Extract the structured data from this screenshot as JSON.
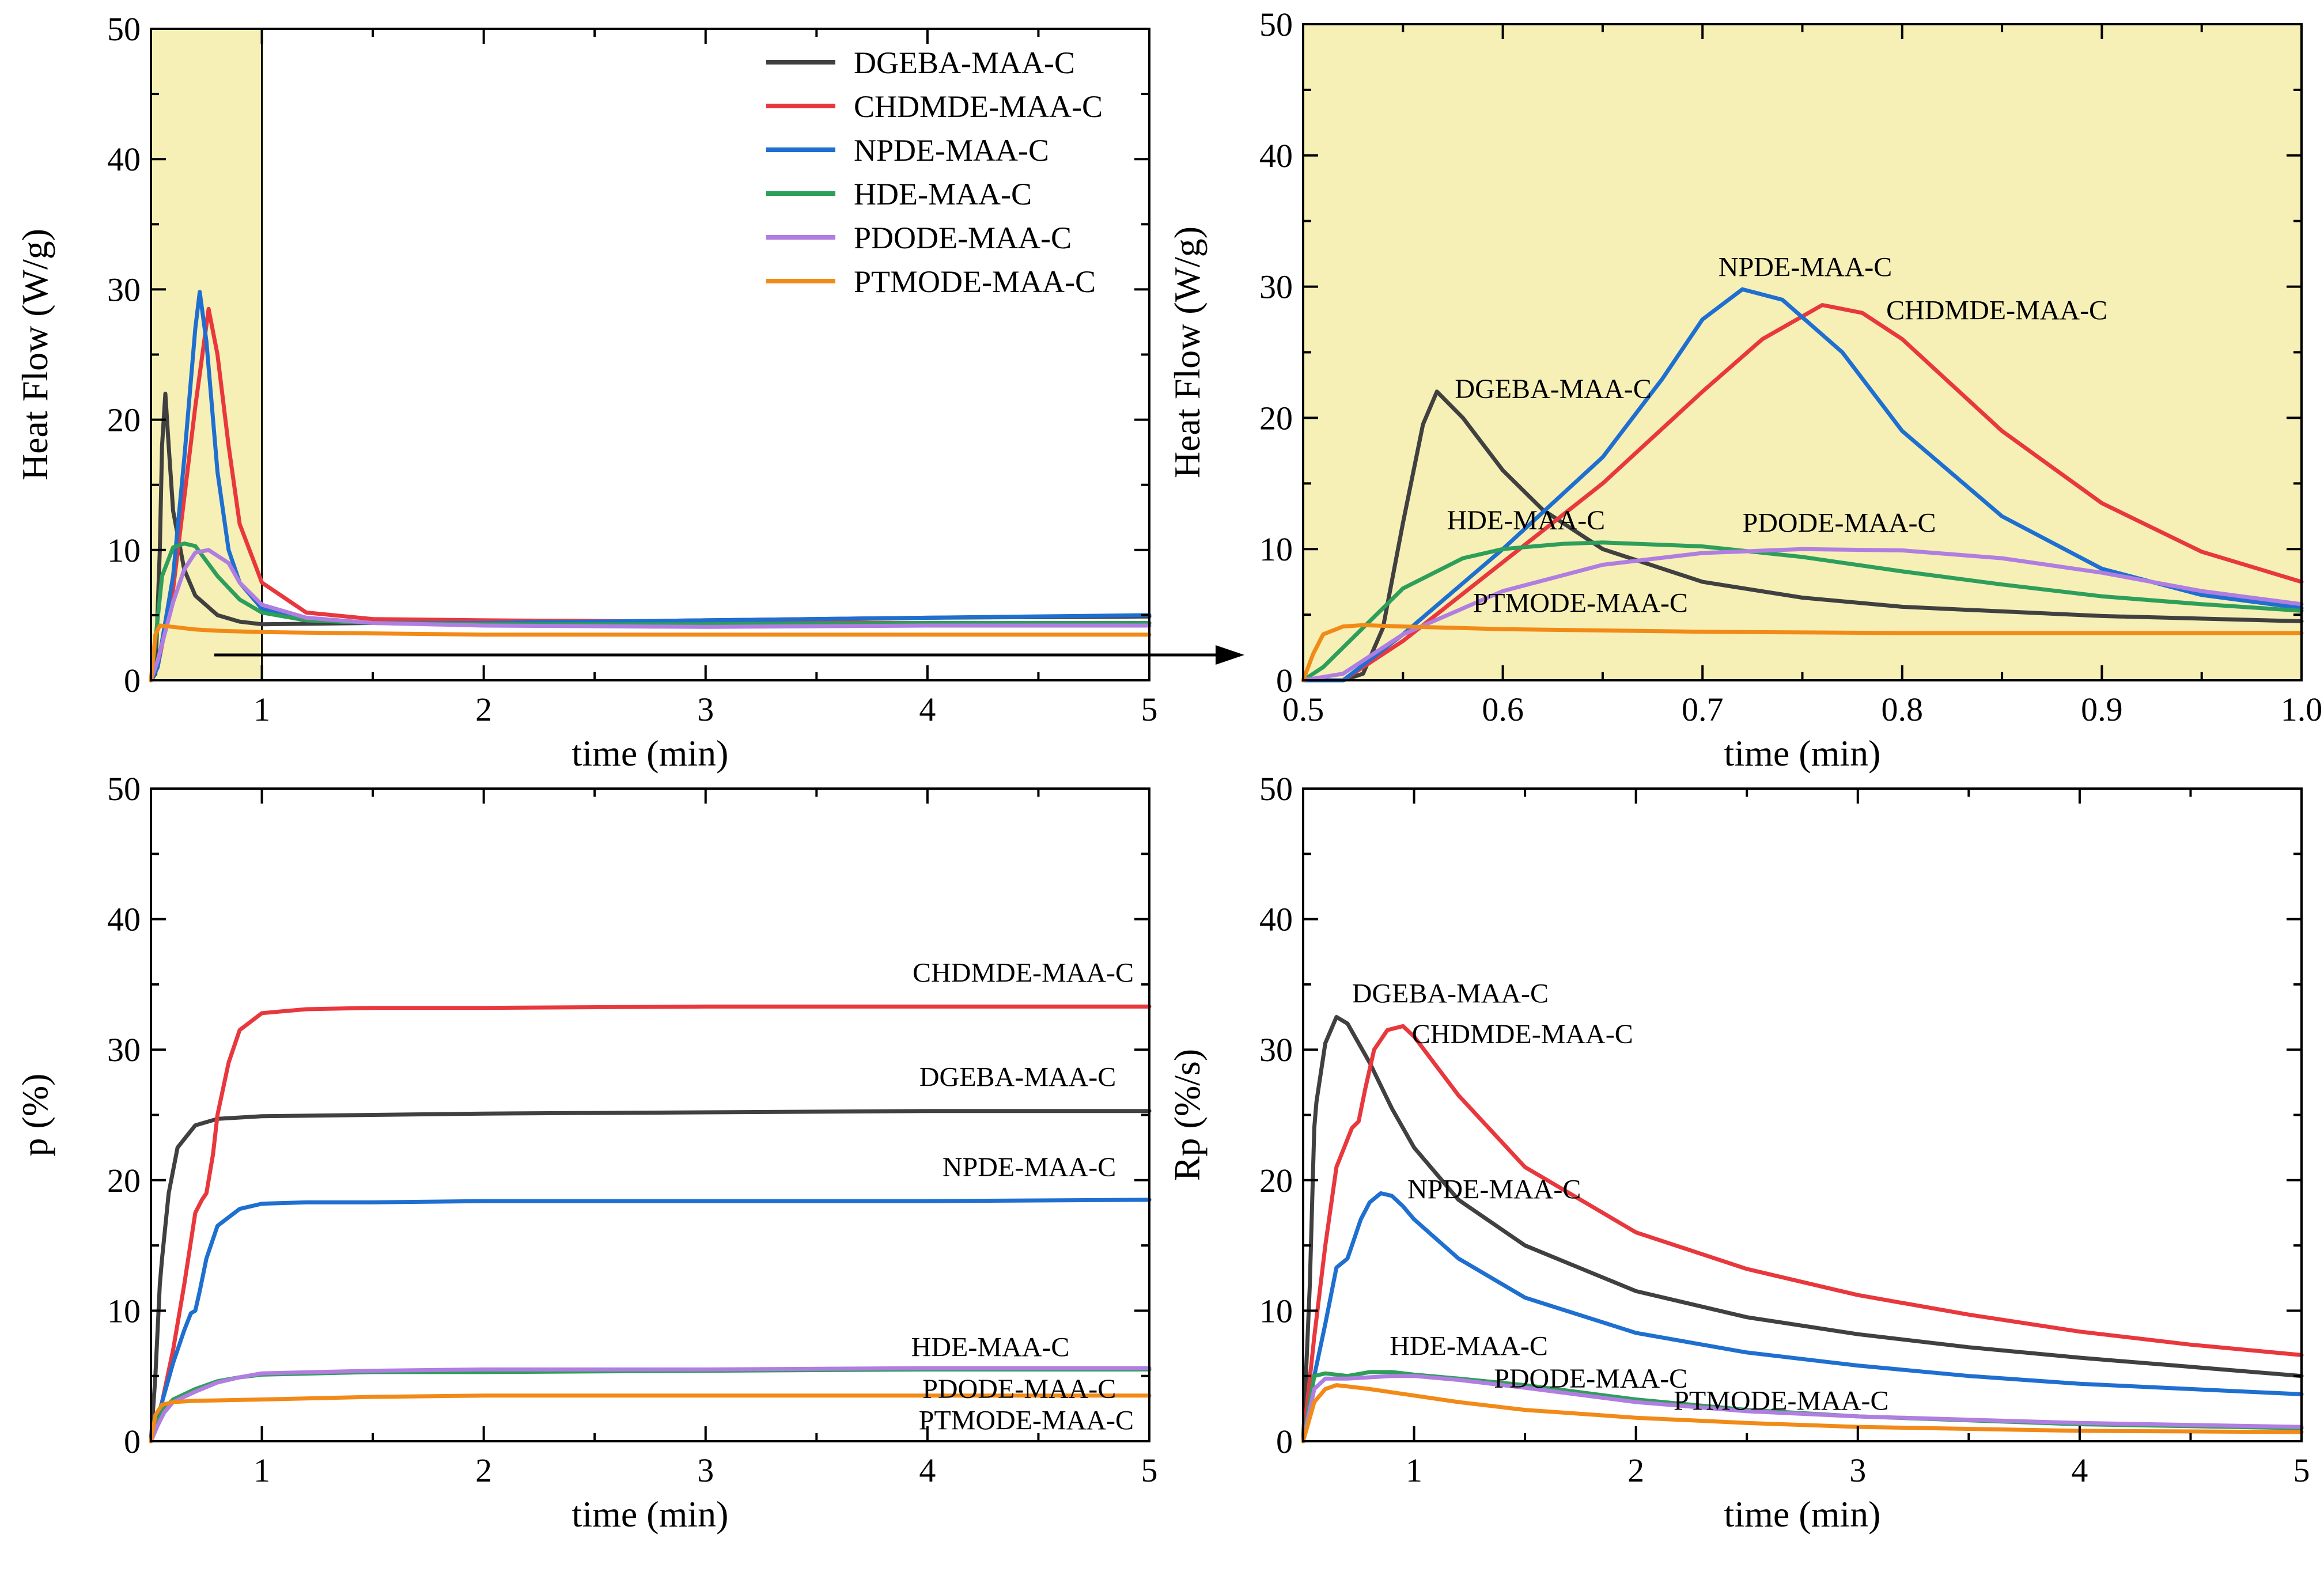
{
  "colors": {
    "DGEBA-MAA-C": "#404040",
    "CHDMDE-MAA-C": "#e8383d",
    "NPDE-MAA-C": "#1f6fd1",
    "HDE-MAA-C": "#2e9e5b",
    "PDODE-MAA-C": "#b07ee0",
    "PTMODE-MAA-C": "#f28a17",
    "highlight": "#f6f0b6"
  },
  "legend": [
    "DGEBA-MAA-C",
    "CHDMDE-MAA-C",
    "NPDE-MAA-C",
    "HDE-MAA-C",
    "PDODE-MAA-C",
    "PTMODE-MAA-C"
  ],
  "chart_data": [
    {
      "id": "heatflow-full",
      "type": "line",
      "xlabel": "time (min)",
      "ylabel": "Heat Flow (W/g)",
      "xlim": [
        0.5,
        5
      ],
      "ylim": [
        0,
        50
      ],
      "xticks": [
        1,
        2,
        3,
        4,
        5
      ],
      "yticks": [
        0,
        10,
        20,
        30,
        40,
        50
      ],
      "highlight_x": [
        0.5,
        1
      ],
      "legend": "top-right",
      "series": [
        {
          "name": "DGEBA-MAA-C",
          "x": [
            0.5,
            0.52,
            0.54,
            0.55,
            0.565,
            0.58,
            0.6,
            0.65,
            0.7,
            0.8,
            0.9,
            1,
            1.5,
            2,
            3,
            4,
            5
          ],
          "y": [
            0,
            0.5,
            10,
            18,
            22,
            18,
            13,
            8.5,
            6.5,
            5,
            4.5,
            4.3,
            4.4,
            4.4,
            4.6,
            4.8,
            4.9
          ]
        },
        {
          "name": "CHDMDE-MAA-C",
          "x": [
            0.5,
            0.53,
            0.6,
            0.65,
            0.7,
            0.76,
            0.8,
            0.85,
            0.9,
            1,
            1.2,
            1.5,
            2,
            3,
            4,
            5
          ],
          "y": [
            0,
            1,
            7,
            14,
            21,
            28.5,
            25,
            18,
            12,
            7.5,
            5.2,
            4.7,
            4.6,
            4.5,
            4.4,
            4.4
          ]
        },
        {
          "name": "NPDE-MAA-C",
          "x": [
            0.5,
            0.53,
            0.6,
            0.65,
            0.7,
            0.72,
            0.75,
            0.8,
            0.85,
            0.9,
            1,
            1.2,
            1.5,
            2,
            3,
            4,
            5
          ],
          "y": [
            0,
            1,
            8,
            17,
            27,
            29.8,
            26,
            16,
            10,
            7.5,
            5.5,
            4.6,
            4.4,
            4.4,
            4.6,
            4.8,
            5
          ]
        },
        {
          "name": "HDE-MAA-C",
          "x": [
            0.5,
            0.52,
            0.55,
            0.6,
            0.65,
            0.7,
            0.8,
            0.9,
            1,
            1.2,
            1.5,
            2,
            3,
            4,
            5
          ],
          "y": [
            0,
            3,
            8,
            10.2,
            10.5,
            10.3,
            8,
            6.2,
            5.2,
            4.6,
            4.4,
            4.3,
            4.3,
            4.4,
            4.4
          ]
        },
        {
          "name": "PDODE-MAA-C",
          "x": [
            0.5,
            0.53,
            0.6,
            0.65,
            0.7,
            0.76,
            0.85,
            0.9,
            1,
            1.2,
            1.5,
            2,
            3,
            4,
            5
          ],
          "y": [
            0,
            1.5,
            6,
            8.5,
            9.8,
            10,
            9,
            7.5,
            5.8,
            4.8,
            4.4,
            4.2,
            4.1,
            4.2,
            4.2
          ]
        },
        {
          "name": "PTMODE-MAA-C",
          "x": [
            0.5,
            0.52,
            0.54,
            0.6,
            0.7,
            0.8,
            1,
            1.5,
            2,
            3,
            4,
            5
          ],
          "y": [
            0,
            3.5,
            4.2,
            4.1,
            3.9,
            3.8,
            3.7,
            3.6,
            3.5,
            3.5,
            3.5,
            3.5
          ]
        }
      ]
    },
    {
      "id": "heatflow-zoom",
      "type": "line",
      "xlabel": "time (min)",
      "ylabel": "Heat Flow (W/g)",
      "xlim": [
        0.5,
        1.0
      ],
      "ylim": [
        0,
        50
      ],
      "xticks": [
        0.5,
        0.6,
        0.7,
        0.8,
        0.9,
        1.0
      ],
      "xtick_labels": [
        "0.5",
        "0.6",
        "0.7",
        "0.8",
        "0.9",
        "1.0"
      ],
      "yticks": [
        0,
        10,
        20,
        30,
        40,
        50
      ],
      "highlight_x": [
        0.5,
        1.0
      ],
      "series": [
        {
          "name": "DGEBA-MAA-C",
          "x": [
            0.5,
            0.52,
            0.53,
            0.54,
            0.55,
            0.56,
            0.567,
            0.58,
            0.6,
            0.62,
            0.65,
            0.7,
            0.75,
            0.8,
            0.9,
            1.0
          ],
          "y": [
            0,
            0,
            0.5,
            4,
            12,
            19.5,
            22,
            20,
            16,
            13,
            10,
            7.5,
            6.3,
            5.6,
            4.9,
            4.5
          ]
        },
        {
          "name": "CHDMDE-MAA-C",
          "x": [
            0.5,
            0.52,
            0.55,
            0.6,
            0.65,
            0.7,
            0.73,
            0.76,
            0.78,
            0.8,
            0.85,
            0.9,
            0.95,
            1.0
          ],
          "y": [
            0,
            0,
            3,
            9,
            15,
            22,
            26,
            28.6,
            28,
            26,
            19,
            13.5,
            9.8,
            7.5
          ]
        },
        {
          "name": "NPDE-MAA-C",
          "x": [
            0.5,
            0.52,
            0.55,
            0.6,
            0.65,
            0.68,
            0.7,
            0.72,
            0.74,
            0.77,
            0.8,
            0.85,
            0.9,
            0.95,
            1.0
          ],
          "y": [
            0,
            0,
            3.5,
            10,
            17,
            23,
            27.5,
            29.8,
            29,
            25,
            19,
            12.5,
            8.5,
            6.5,
            5.5
          ]
        },
        {
          "name": "HDE-MAA-C",
          "x": [
            0.5,
            0.51,
            0.53,
            0.55,
            0.58,
            0.6,
            0.63,
            0.65,
            0.7,
            0.75,
            0.8,
            0.85,
            0.9,
            0.95,
            1.0
          ],
          "y": [
            0,
            1,
            4,
            7,
            9.3,
            10,
            10.4,
            10.5,
            10.2,
            9.4,
            8.3,
            7.3,
            6.4,
            5.8,
            5.3
          ]
        },
        {
          "name": "PDODE-MAA-C",
          "x": [
            0.5,
            0.52,
            0.55,
            0.6,
            0.65,
            0.7,
            0.75,
            0.8,
            0.85,
            0.9,
            0.95,
            1.0
          ],
          "y": [
            0,
            0.5,
            3.5,
            6.8,
            8.8,
            9.7,
            10,
            9.9,
            9.3,
            8.2,
            6.8,
            5.8
          ]
        },
        {
          "name": "PTMODE-MAA-C",
          "x": [
            0.5,
            0.505,
            0.51,
            0.52,
            0.53,
            0.55,
            0.6,
            0.7,
            0.8,
            0.9,
            1.0
          ],
          "y": [
            0,
            2,
            3.5,
            4.1,
            4.2,
            4.1,
            3.9,
            3.7,
            3.6,
            3.6,
            3.6
          ]
        }
      ],
      "annotations": [
        {
          "text": "DGEBA-MAA-C",
          "x": 0.576,
          "y": 21.5
        },
        {
          "text": "NPDE-MAA-C",
          "x": 0.708,
          "y": 30.8
        },
        {
          "text": "CHDMDE-MAA-C",
          "x": 0.792,
          "y": 27.5
        },
        {
          "text": "HDE-MAA-C",
          "x": 0.572,
          "y": 11.5
        },
        {
          "text": "PDODE-MAA-C",
          "x": 0.72,
          "y": 11.3
        },
        {
          "text": "PTMODE-MAA-C",
          "x": 0.585,
          "y": 5.2
        }
      ]
    },
    {
      "id": "conversion",
      "type": "line",
      "xlabel": "time (min)",
      "ylabel": "p (%)",
      "xlim": [
        0.5,
        5
      ],
      "ylim": [
        0,
        50
      ],
      "xticks": [
        1,
        2,
        3,
        4,
        5
      ],
      "yticks": [
        0,
        10,
        20,
        30,
        40,
        50
      ],
      "series": [
        {
          "name": "DGEBA-MAA-C",
          "x": [
            0.5,
            0.52,
            0.54,
            0.55,
            0.58,
            0.62,
            0.7,
            0.8,
            1,
            1.5,
            2,
            3,
            4,
            5
          ],
          "y": [
            0,
            5,
            12,
            14,
            19,
            22.5,
            24.2,
            24.7,
            24.9,
            25,
            25.1,
            25.2,
            25.3,
            25.3
          ]
        },
        {
          "name": "CHDMDE-MAA-C",
          "x": [
            0.5,
            0.55,
            0.6,
            0.65,
            0.7,
            0.73,
            0.75,
            0.78,
            0.8,
            0.85,
            0.9,
            1,
            1.2,
            1.5,
            2,
            3,
            4,
            5
          ],
          "y": [
            0,
            3,
            7,
            12,
            17.5,
            18.5,
            19,
            22,
            25,
            29,
            31.5,
            32.8,
            33.1,
            33.2,
            33.2,
            33.3,
            33.3,
            33.3
          ]
        },
        {
          "name": "NPDE-MAA-C",
          "x": [
            0.5,
            0.55,
            0.6,
            0.65,
            0.68,
            0.7,
            0.72,
            0.75,
            0.8,
            0.9,
            1,
            1.2,
            1.5,
            2,
            3,
            4,
            5
          ],
          "y": [
            0,
            3,
            6,
            8.5,
            9.8,
            10,
            11.5,
            14,
            16.5,
            17.8,
            18.2,
            18.3,
            18.3,
            18.4,
            18.4,
            18.4,
            18.5
          ]
        },
        {
          "name": "HDE-MAA-C",
          "x": [
            0.5,
            0.53,
            0.56,
            0.6,
            0.7,
            0.8,
            0.9,
            1,
            1.5,
            2,
            3,
            4,
            5
          ],
          "y": [
            0,
            1.5,
            2.5,
            3.2,
            4,
            4.6,
            4.9,
            5.1,
            5.3,
            5.3,
            5.4,
            5.5,
            5.5
          ]
        },
        {
          "name": "PDODE-MAA-C",
          "x": [
            0.5,
            0.53,
            0.56,
            0.6,
            0.7,
            0.8,
            0.9,
            1,
            1.5,
            2,
            3,
            4,
            5
          ],
          "y": [
            0,
            1.2,
            2.2,
            3,
            3.8,
            4.5,
            4.9,
            5.2,
            5.4,
            5.5,
            5.5,
            5.6,
            5.6
          ]
        },
        {
          "name": "PTMODE-MAA-C",
          "x": [
            0.5,
            0.52,
            0.55,
            0.6,
            0.7,
            1,
            1.5,
            2,
            3,
            4,
            5
          ],
          "y": [
            0,
            2,
            2.8,
            3,
            3.1,
            3.2,
            3.4,
            3.5,
            3.5,
            3.5,
            3.5
          ]
        }
      ],
      "annotations": [
        {
          "text": "CHDMDE-MAA-C",
          "x": 4.93,
          "y": 35.2,
          "anchor": "end"
        },
        {
          "text": "DGEBA-MAA-C",
          "x": 4.85,
          "y": 27.2,
          "anchor": "end"
        },
        {
          "text": "NPDE-MAA-C",
          "x": 4.85,
          "y": 20.3,
          "anchor": "end"
        },
        {
          "text": "HDE-MAA-C",
          "x": 4.64,
          "y": 6.5,
          "anchor": "end"
        },
        {
          "text": "PDODE-MAA-C",
          "x": 4.85,
          "y": 3.3,
          "anchor": "end"
        },
        {
          "text": "PTMODE-MAA-C",
          "x": 4.93,
          "y": 0.9,
          "anchor": "end"
        }
      ]
    },
    {
      "id": "rate",
      "type": "line",
      "xlabel": "time (min)",
      "ylabel": "Rp (%/s)",
      "xlim": [
        0.5,
        5
      ],
      "ylim": [
        0,
        50
      ],
      "xticks": [
        1,
        2,
        3,
        4,
        5
      ],
      "yticks": [
        0,
        10,
        20,
        30,
        40,
        50
      ],
      "series": [
        {
          "name": "DGEBA-MAA-C",
          "x": [
            0.5,
            0.53,
            0.55,
            0.56,
            0.6,
            0.65,
            0.7,
            0.8,
            0.9,
            1,
            1.2,
            1.5,
            2,
            2.5,
            3,
            3.5,
            4,
            4.5,
            5
          ],
          "y": [
            0,
            12,
            24,
            26,
            30.5,
            32.5,
            32,
            29,
            25.5,
            22.5,
            18.5,
            15,
            11.5,
            9.5,
            8.2,
            7.2,
            6.4,
            5.7,
            5
          ]
        },
        {
          "name": "CHDMDE-MAA-C",
          "x": [
            0.5,
            0.55,
            0.6,
            0.65,
            0.72,
            0.75,
            0.78,
            0.82,
            0.88,
            0.95,
            1,
            1.2,
            1.5,
            2,
            2.5,
            3,
            3.5,
            4,
            4.5,
            5
          ],
          "y": [
            0,
            8,
            15,
            21,
            24,
            24.5,
            27,
            30,
            31.5,
            31.8,
            31,
            26.5,
            21,
            16,
            13.2,
            11.2,
            9.7,
            8.4,
            7.4,
            6.6
          ]
        },
        {
          "name": "NPDE-MAA-C",
          "x": [
            0.5,
            0.55,
            0.6,
            0.65,
            0.7,
            0.73,
            0.76,
            0.8,
            0.85,
            0.9,
            0.95,
            1,
            1.2,
            1.5,
            2,
            2.5,
            3,
            3.5,
            4,
            4.5,
            5
          ],
          "y": [
            0,
            5,
            9,
            13.3,
            14,
            15.5,
            17,
            18.3,
            19,
            18.8,
            18,
            17,
            14,
            11,
            8.3,
            6.8,
            5.8,
            5,
            4.4,
            4,
            3.6
          ]
        },
        {
          "name": "HDE-MAA-C",
          "x": [
            0.5,
            0.55,
            0.6,
            0.7,
            0.8,
            0.9,
            1,
            1.2,
            1.5,
            2,
            2.5,
            3,
            4,
            5
          ],
          "y": [
            0,
            5,
            5.2,
            5,
            5.3,
            5.3,
            5.1,
            4.8,
            4.3,
            3.2,
            2.4,
            1.9,
            1.3,
            1
          ]
        },
        {
          "name": "PDODE-MAA-C",
          "x": [
            0.5,
            0.55,
            0.6,
            0.7,
            0.8,
            0.9,
            1,
            1.2,
            1.5,
            2,
            2.5,
            3,
            4,
            5
          ],
          "y": [
            0,
            4,
            4.8,
            4.8,
            4.9,
            5,
            5,
            4.7,
            4.1,
            3,
            2.3,
            1.9,
            1.4,
            1.1
          ]
        },
        {
          "name": "PTMODE-MAA-C",
          "x": [
            0.5,
            0.55,
            0.6,
            0.65,
            0.7,
            0.8,
            1,
            1.2,
            1.5,
            2,
            2.5,
            3,
            4,
            5
          ],
          "y": [
            0,
            3,
            4,
            4.3,
            4.2,
            4,
            3.5,
            3,
            2.4,
            1.8,
            1.4,
            1.1,
            0.8,
            0.7
          ]
        }
      ],
      "annotations": [
        {
          "text": "DGEBA-MAA-C",
          "x": 0.72,
          "y": 33.6
        },
        {
          "text": "CHDMDE-MAA-C",
          "x": 0.99,
          "y": 30.5
        },
        {
          "text": "NPDE-MAA-C",
          "x": 0.97,
          "y": 18.6
        },
        {
          "text": "HDE-MAA-C",
          "x": 0.89,
          "y": 6.6
        },
        {
          "text": "PDODE-MAA-C",
          "x": 1.36,
          "y": 4.1
        },
        {
          "text": "PTMODE-MAA-C",
          "x": 2.17,
          "y": 2.4
        }
      ]
    }
  ]
}
